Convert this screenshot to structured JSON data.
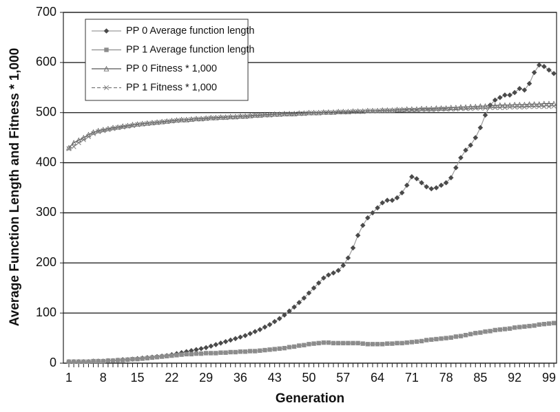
{
  "chart_data": {
    "type": "line",
    "x_label": "Generation",
    "y_label": "Average Function Length and Fitness * 1,000",
    "categories": [
      "1",
      null,
      null,
      null,
      null,
      null,
      null,
      "8",
      null,
      null,
      null,
      null,
      null,
      null,
      "15",
      null,
      null,
      null,
      null,
      null,
      null,
      "22",
      null,
      null,
      null,
      null,
      null,
      null,
      "29",
      null,
      null,
      null,
      null,
      null,
      null,
      "36",
      null,
      null,
      null,
      null,
      null,
      null,
      "43",
      null,
      null,
      null,
      null,
      null,
      null,
      "50",
      null,
      null,
      null,
      null,
      null,
      null,
      "57",
      null,
      null,
      null,
      null,
      null,
      null,
      "64",
      null,
      null,
      null,
      null,
      null,
      null,
      "71",
      null,
      null,
      null,
      null,
      null,
      null,
      "78",
      null,
      null,
      null,
      null,
      null,
      null,
      "85",
      null,
      null,
      null,
      null,
      null,
      null,
      "92",
      null,
      null,
      null,
      null,
      null,
      null,
      "99",
      null
    ],
    "ylim": [
      0,
      700
    ],
    "yticks": [
      0,
      100,
      200,
      300,
      400,
      500,
      600,
      700
    ],
    "grid": true,
    "legend": "upper-left",
    "series": [
      {
        "name": "PP 0 Average function length",
        "color": "#4a4a4a",
        "line_color": "#9a9a9a",
        "marker": "diamond",
        "dashed": false,
        "values": [
          3,
          3,
          3,
          3,
          3,
          4,
          4,
          4,
          5,
          5,
          6,
          7,
          7,
          8,
          9,
          10,
          11,
          12,
          13,
          14,
          15,
          17,
          19,
          21,
          23,
          25,
          27,
          29,
          31,
          34,
          37,
          40,
          43,
          46,
          49,
          52,
          55,
          59,
          63,
          67,
          72,
          77,
          83,
          89,
          96,
          104,
          112,
          121,
          130,
          140,
          150,
          160,
          170,
          176,
          180,
          185,
          195,
          210,
          230,
          255,
          275,
          290,
          300,
          310,
          320,
          325,
          325,
          330,
          340,
          355,
          372,
          368,
          360,
          352,
          348,
          350,
          355,
          360,
          370,
          390,
          410,
          425,
          435,
          450,
          470,
          495,
          515,
          525,
          530,
          535,
          535,
          540,
          548,
          545,
          558,
          580,
          595,
          592,
          585,
          578
        ]
      },
      {
        "name": "PP 1 Average function length",
        "color": "#8c8c8c",
        "line_color": "#8c8c8c",
        "marker": "square",
        "dashed": false,
        "values": [
          3,
          3,
          3,
          3,
          3,
          4,
          4,
          4,
          5,
          5,
          6,
          6,
          7,
          8,
          8,
          9,
          10,
          11,
          12,
          13,
          14,
          15,
          16,
          17,
          18,
          18,
          19,
          19,
          20,
          20,
          20,
          21,
          21,
          22,
          22,
          23,
          23,
          24,
          24,
          25,
          26,
          27,
          28,
          29,
          30,
          32,
          33,
          35,
          36,
          38,
          39,
          40,
          41,
          41,
          40,
          40,
          40,
          40,
          40,
          40,
          39,
          38,
          38,
          38,
          38,
          39,
          39,
          40,
          40,
          41,
          42,
          43,
          44,
          46,
          47,
          48,
          49,
          50,
          51,
          53,
          54,
          56,
          58,
          60,
          61,
          63,
          64,
          66,
          67,
          68,
          69,
          71,
          72,
          73,
          74,
          75,
          77,
          78,
          79,
          80
        ]
      },
      {
        "name": "PP 0 Fitness * 1,000",
        "color": "#6a6a6a",
        "line_color": "#555555",
        "marker": "triangle",
        "dashed": false,
        "values": [
          430,
          440,
          445,
          450,
          456,
          461,
          464,
          466,
          468,
          470,
          471,
          473,
          474,
          476,
          477,
          478,
          479,
          480,
          481,
          482,
          483,
          484,
          485,
          486,
          486,
          487,
          488,
          488,
          489,
          490,
          490,
          491,
          491,
          492,
          492,
          493,
          493,
          494,
          495,
          495,
          496,
          496,
          497,
          497,
          498,
          498,
          498,
          499,
          499,
          500,
          500,
          500,
          501,
          501,
          501,
          502,
          502,
          502,
          503,
          503,
          503,
          504,
          504,
          504,
          505,
          505,
          505,
          506,
          506,
          507,
          507,
          507,
          508,
          508,
          508,
          509,
          509,
          509,
          510,
          510,
          511,
          511,
          512,
          512,
          513,
          513,
          514,
          514,
          515,
          515,
          515,
          516,
          516,
          516,
          517,
          517,
          517,
          518,
          518,
          518
        ]
      },
      {
        "name": "PP 1 Fitness * 1,000",
        "color": "#777777",
        "line_color": "#777777",
        "marker": "x",
        "dashed": true,
        "values": [
          428,
          432,
          440,
          446,
          452,
          458,
          462,
          464,
          466,
          468,
          470,
          471,
          473,
          474,
          476,
          477,
          478,
          479,
          480,
          481,
          482,
          483,
          484,
          485,
          485,
          486,
          487,
          487,
          488,
          489,
          489,
          490,
          490,
          491,
          491,
          492,
          492,
          493,
          494,
          494,
          495,
          495,
          496,
          496,
          497,
          497,
          497,
          498,
          498,
          499,
          499,
          499,
          500,
          500,
          500,
          501,
          501,
          501,
          502,
          502,
          502,
          503,
          503,
          503,
          504,
          504,
          504,
          505,
          505,
          505,
          505,
          505,
          506,
          506,
          506,
          506,
          507,
          507,
          507,
          507,
          508,
          508,
          508,
          509,
          509,
          509,
          510,
          510,
          510,
          510,
          511,
          511,
          511,
          511,
          512,
          512,
          512,
          512,
          512,
          513
        ]
      }
    ]
  }
}
